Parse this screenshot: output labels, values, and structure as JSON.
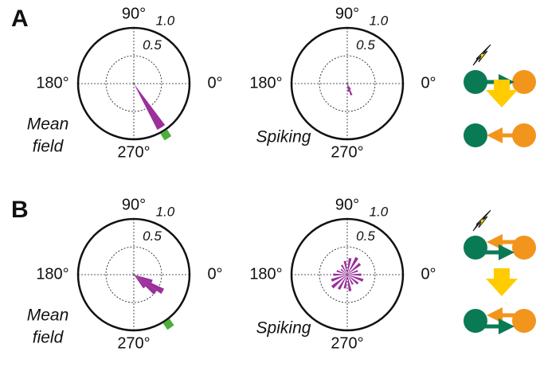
{
  "panels": [
    {
      "letter": "A"
    },
    {
      "letter": "B"
    }
  ],
  "chart_data": [
    {
      "type": "polar",
      "label_lines": [
        "Mean",
        "field"
      ],
      "rlim": [
        0,
        1
      ],
      "rticks": [
        0.5,
        {
          "value": 1,
          "label": "1.0"
        }
      ],
      "thetaticks": [
        {
          "value": 0,
          "label": "0°"
        },
        {
          "value": 90,
          "label": "90°"
        },
        {
          "value": 180,
          "label": "180°"
        },
        {
          "value": 270,
          "label": "270°"
        }
      ],
      "theta": [
        302
      ],
      "values": [
        0.93
      ],
      "color": "#9b2f9b",
      "mean_angle": 302,
      "mean_color": "#4caf3a"
    },
    {
      "type": "polar",
      "label_lines": [
        "Spiking"
      ],
      "rlim": [
        0,
        1
      ],
      "rticks": [
        0.5,
        {
          "value": 1,
          "label": "1.0"
        }
      ],
      "thetaticks": [
        {
          "value": 0,
          "label": "0°"
        },
        {
          "value": 90,
          "label": "90°"
        },
        {
          "value": 180,
          "label": "180°"
        },
        {
          "value": 270,
          "label": "270°"
        }
      ],
      "theta": [
        70,
        280,
        290,
        300
      ],
      "values": [
        0.05,
        0.15,
        0.22,
        0.12
      ],
      "color": "#9b2f9b"
    },
    {
      "type": "polar",
      "label_lines": [
        "Mean",
        "field"
      ],
      "rlim": [
        0,
        1
      ],
      "rticks": [
        0.5,
        {
          "value": 1,
          "label": "1.0"
        }
      ],
      "thetaticks": [
        {
          "value": 0,
          "label": "0°"
        },
        {
          "value": 90,
          "label": "90°"
        },
        {
          "value": 180,
          "label": "180°"
        },
        {
          "value": 270,
          "label": "270°"
        }
      ],
      "theta": [
        120,
        310,
        320,
        330,
        340
      ],
      "values": [
        0.05,
        0.3,
        0.5,
        0.6,
        0.35
      ],
      "color": "#9b2f9b",
      "mean_angle": 305,
      "mean_color": "#4caf3a"
    },
    {
      "type": "polar",
      "label_lines": [
        "Spiking"
      ],
      "rlim": [
        0,
        1
      ],
      "rticks": [
        0.5,
        {
          "value": 1,
          "label": "1.0"
        }
      ],
      "thetaticks": [
        {
          "value": 0,
          "label": "0°"
        },
        {
          "value": 90,
          "label": "90°"
        },
        {
          "value": 180,
          "label": "180°"
        },
        {
          "value": 270,
          "label": "270°"
        }
      ],
      "theta": [
        0,
        20,
        40,
        60,
        80,
        100,
        120,
        140,
        160,
        180,
        200,
        220,
        240,
        260,
        280,
        300,
        320,
        340
      ],
      "values": [
        0.25,
        0.2,
        0.3,
        0.35,
        0.3,
        0.25,
        0.2,
        0.15,
        0.2,
        0.25,
        0.3,
        0.35,
        0.3,
        0.25,
        0.3,
        0.2,
        0.25,
        0.3
      ],
      "color": "#9b2f9b"
    }
  ]
}
